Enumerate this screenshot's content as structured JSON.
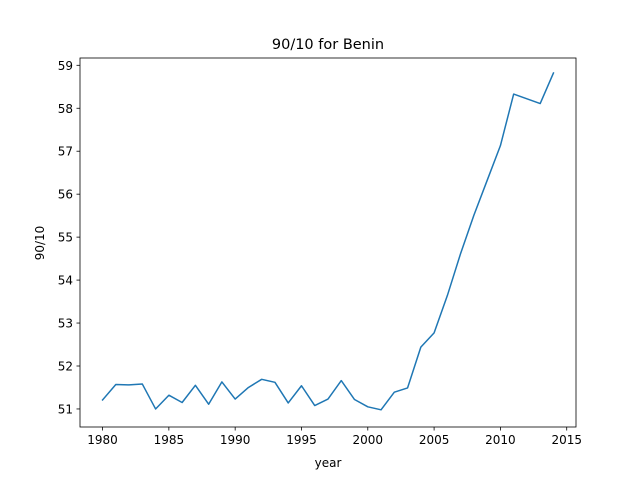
{
  "chart_data": {
    "type": "line",
    "title": "90/10 for Benin",
    "xlabel": "year",
    "ylabel": "90/10",
    "xlim": [
      1978.3,
      2015.7
    ],
    "ylim": [
      50.58,
      59.17
    ],
    "xticks": [
      1980,
      1985,
      1990,
      1995,
      2000,
      2005,
      2010,
      2015
    ],
    "yticks": [
      51,
      52,
      53,
      54,
      55,
      56,
      57,
      58,
      59
    ],
    "grid": false,
    "series": [
      {
        "color": "#1f77b4",
        "x": [
          1980,
          1981,
          1982,
          1983,
          1984,
          1985,
          1986,
          1987,
          1988,
          1989,
          1990,
          1991,
          1992,
          1993,
          1994,
          1995,
          1996,
          1997,
          1998,
          1999,
          2000,
          2001,
          2002,
          2003,
          2004,
          2005,
          2006,
          2007,
          2008,
          2009,
          2010,
          2011,
          2012,
          2013,
          2014
        ],
        "y": [
          51.21,
          51.57,
          51.56,
          51.58,
          51.0,
          51.32,
          51.15,
          51.55,
          51.11,
          51.63,
          51.23,
          51.5,
          51.69,
          51.62,
          51.14,
          51.54,
          51.08,
          51.23,
          51.66,
          51.22,
          51.05,
          50.98,
          51.39,
          51.49,
          52.44,
          52.77,
          53.64,
          54.62,
          55.51,
          56.32,
          57.13,
          58.33,
          58.22,
          58.11,
          58.82
        ]
      }
    ]
  }
}
